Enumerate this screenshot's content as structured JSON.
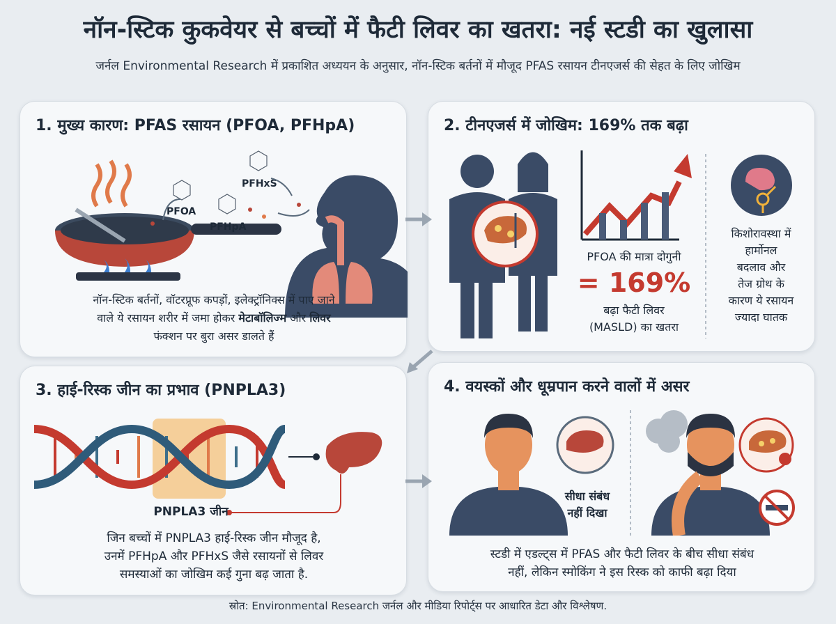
{
  "header": {
    "title": "नॉन-स्टिक कुकवेयर से बच्चों में फैटी लिवर का खतरा: नई स्टडी का खुलासा",
    "subtitle": "जर्नल Environmental Research में प्रकाशित अध्ययन के अनुसार, नॉन-स्टिक बर्तनों में मौजूद PFAS रसायन टीनएजर्स की सेहत के लिए जोखिम"
  },
  "panel1": {
    "title": "1. मुख्य कारण: PFAS रसायन (PFOA, PFHpA)",
    "chem_labels": [
      "PFOA",
      "PFHpA",
      "PFHxS"
    ],
    "text_line1": "नॉन-स्टिक बर्तनों, वॉटरप्रूफ कपड़ों, इलेक्ट्रॉनिक्स में पाए जाने",
    "text_line2_a": "वाले ये रसायन शरीर में जमा होकर ",
    "text_line2_b": "मेटाबॉलिज्म",
    "text_line2_c": " और ",
    "text_line2_d": "लिवर",
    "text_line3": "फंक्शन पर बुरा असर डालते हैं"
  },
  "panel2": {
    "title": "2. टीनएजर्स में जोखिम: 169% तक बढ़ा",
    "stat_label": "PFOA की मात्रा दोगुनी",
    "stat_value": "= 169%",
    "stat_desc1": "बढ़ा फैटी लिवर",
    "stat_desc2": "(MASLD) का खतरा",
    "side_text": [
      "किशोरावस्था में",
      "हार्मोनल",
      "बदलाव और",
      "तेज ग्रोथ के",
      "कारण ये रसायन",
      "ज्यादा घातक"
    ]
  },
  "panel3": {
    "title": "3. हाई-रिस्क जीन का प्रभाव (PNPLA3)",
    "gene_label": "PNPLA3 जीन",
    "text_line1": "जिन बच्चों में PNPLA3 हाई-रिस्क जीन मौजूद है,",
    "text_line2": "उनमें PFHpA और PFHxS जैसे रसायनों से लिवर",
    "text_line3": "समस्याओं का जोखिम कई गुना बढ़ जाता है."
  },
  "panel4": {
    "title": "4. वयस्कों और धूम्रपान करने वालों में असर",
    "relation_label1": "सीधा संबंध",
    "relation_label2": "नहीं दिखा",
    "text_line1": "स्टडी में एडल्ट्स में PFAS और फैटी लिवर के बीच सीधा संबंध",
    "text_line2": "नहीं, लेकिन स्मोकिंग ने इस रिस्क को काफी बढ़ा दिया"
  },
  "footer": {
    "source": "स्रोत: Environmental Research जर्नल और मीडिया रिपोर्ट्स पर आधारित डेटा और विश्लेषण."
  },
  "colors": {
    "accent_red": "#c43a2f",
    "navy": "#3a4b66",
    "liver": "#b8473a",
    "background": "#e9edf1"
  }
}
